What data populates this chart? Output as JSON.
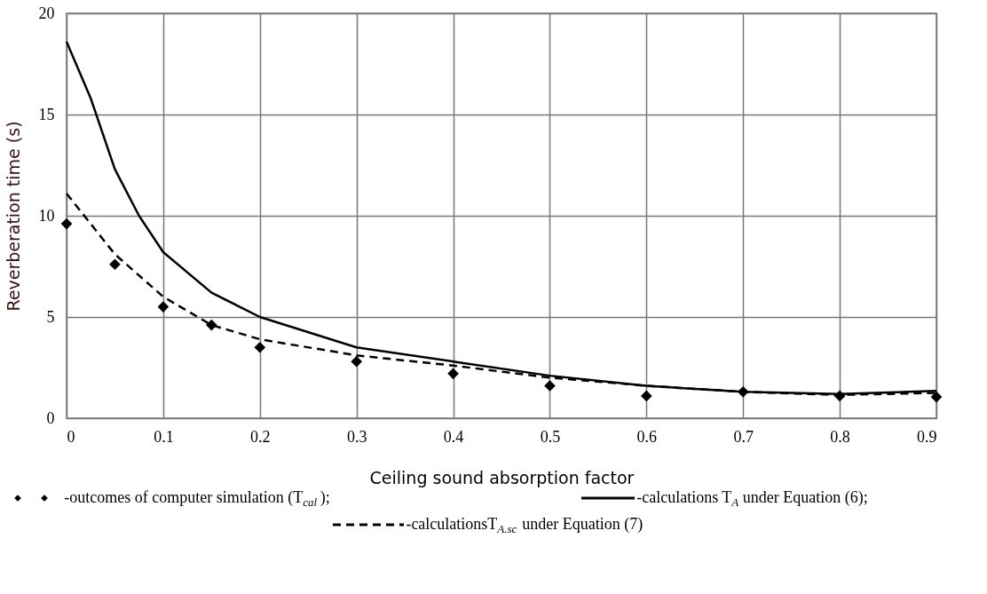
{
  "chart_data": {
    "type": "line",
    "xlabel": "Ceiling sound absorption factor",
    "ylabel": "Reverberation time (s)",
    "xlim": [
      0,
      0.9
    ],
    "xticks": [
      0,
      0.1,
      0.2,
      0.3,
      0.4,
      0.5,
      0.6,
      0.7,
      0.8,
      0.9
    ],
    "ylim": [
      0,
      20
    ],
    "yticks": [
      0,
      5,
      10,
      15,
      20
    ],
    "grid": true,
    "legend": "bottom",
    "series": [
      {
        "name": "-outcomes of computer simulation (T$_{cal}$);",
        "type": "scatter",
        "marker": "diamond",
        "color": "#000000",
        "x": [
          0,
          0.05,
          0.1,
          0.15,
          0.2,
          0.3,
          0.4,
          0.5,
          0.6,
          0.7,
          0.8,
          0.9
        ],
        "values": [
          9.6,
          7.6,
          5.5,
          4.6,
          3.5,
          2.8,
          2.2,
          1.6,
          1.1,
          1.3,
          1.1,
          1.05
        ]
      },
      {
        "name": "-calculations T$_{A}$ under Equation (6);",
        "line_style": "solid",
        "color": "#000000",
        "x": [
          0,
          0.025,
          0.05,
          0.075,
          0.1,
          0.15,
          0.2,
          0.3,
          0.4,
          0.5,
          0.6,
          0.7,
          0.8,
          0.9
        ],
        "values": [
          18.6,
          15.8,
          12.3,
          10.0,
          8.2,
          6.2,
          5.0,
          3.5,
          2.8,
          2.1,
          1.6,
          1.3,
          1.2,
          1.35
        ]
      },
      {
        "name": "-calculationsT$_{A.sc}$under Equation (7)",
        "line_style": "dashed",
        "color": "#000000",
        "x": [
          0,
          0.05,
          0.1,
          0.15,
          0.2,
          0.3,
          0.4,
          0.5,
          0.6,
          0.7,
          0.8,
          0.9
        ],
        "values": [
          11.1,
          8.1,
          6.0,
          4.6,
          3.9,
          3.1,
          2.6,
          2.0,
          1.6,
          1.3,
          1.15,
          1.25
        ]
      }
    ]
  }
}
